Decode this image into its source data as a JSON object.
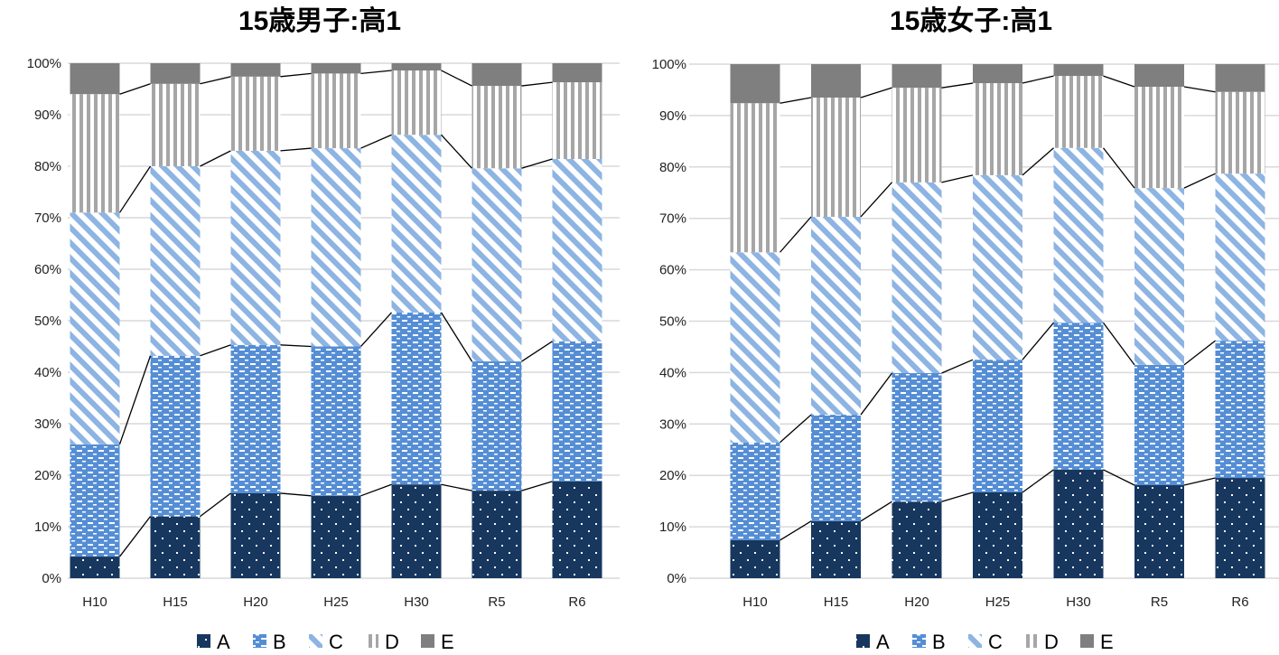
{
  "chart_data": [
    {
      "type": "bar",
      "stacked": "percent",
      "title": "15歳男子:高1",
      "categories": [
        "H10",
        "H15",
        "H20",
        "H25",
        "H30",
        "R5",
        "R6"
      ],
      "ylim": [
        0,
        100
      ],
      "yticks": [
        "0%",
        "10%",
        "20%",
        "30%",
        "40%",
        "50%",
        "60%",
        "70%",
        "80%",
        "90%",
        "100%"
      ],
      "grid": true,
      "series_lines": true,
      "legend_position": "bottom",
      "series": [
        {
          "name": "A",
          "values": [
            4.2,
            12,
            16.5,
            16,
            18.2,
            17,
            18.8
          ]
        },
        {
          "name": "B",
          "values": [
            21.8,
            31.2,
            28.8,
            29,
            33.4,
            25.1,
            27.2
          ]
        },
        {
          "name": "C",
          "values": [
            45,
            36.8,
            37.7,
            38.5,
            34.5,
            37.5,
            35.4
          ]
        },
        {
          "name": "D",
          "values": [
            23,
            16,
            14.4,
            14.5,
            12.5,
            16,
            14.9
          ]
        },
        {
          "name": "E",
          "values": [
            6,
            4,
            2.6,
            2,
            1.4,
            4.4,
            3.7
          ]
        }
      ]
    },
    {
      "type": "bar",
      "stacked": "percent",
      "title": "15歳女子:高1",
      "categories": [
        "H10",
        "H15",
        "H20",
        "H25",
        "H30",
        "R5",
        "R6"
      ],
      "ylim": [
        0,
        100
      ],
      "yticks": [
        "0%",
        "10%",
        "20%",
        "30%",
        "40%",
        "50%",
        "60%",
        "70%",
        "80%",
        "90%",
        "100%"
      ],
      "grid": true,
      "series_lines": true,
      "legend_position": "bottom",
      "series": [
        {
          "name": "A",
          "values": [
            7.4,
            11.1,
            14.9,
            16.7,
            21.1,
            18.1,
            19.5
          ]
        },
        {
          "name": "B",
          "values": [
            19,
            20.7,
            25,
            25.8,
            28.6,
            23.4,
            26.7
          ]
        },
        {
          "name": "C",
          "values": [
            37,
            38.5,
            37.1,
            35.9,
            34,
            34.4,
            32.5
          ]
        },
        {
          "name": "D",
          "values": [
            29,
            23.2,
            18.4,
            17.9,
            14,
            19.7,
            15.9
          ]
        },
        {
          "name": "E",
          "values": [
            7.6,
            6.5,
            4.6,
            3.7,
            2.3,
            4.4,
            5.4
          ]
        }
      ]
    }
  ],
  "colors": {
    "A": "#17375e",
    "B": "#558ed5",
    "C": "#8db4e2",
    "D": "#a6a6a6",
    "E": "#7f7f7f"
  }
}
